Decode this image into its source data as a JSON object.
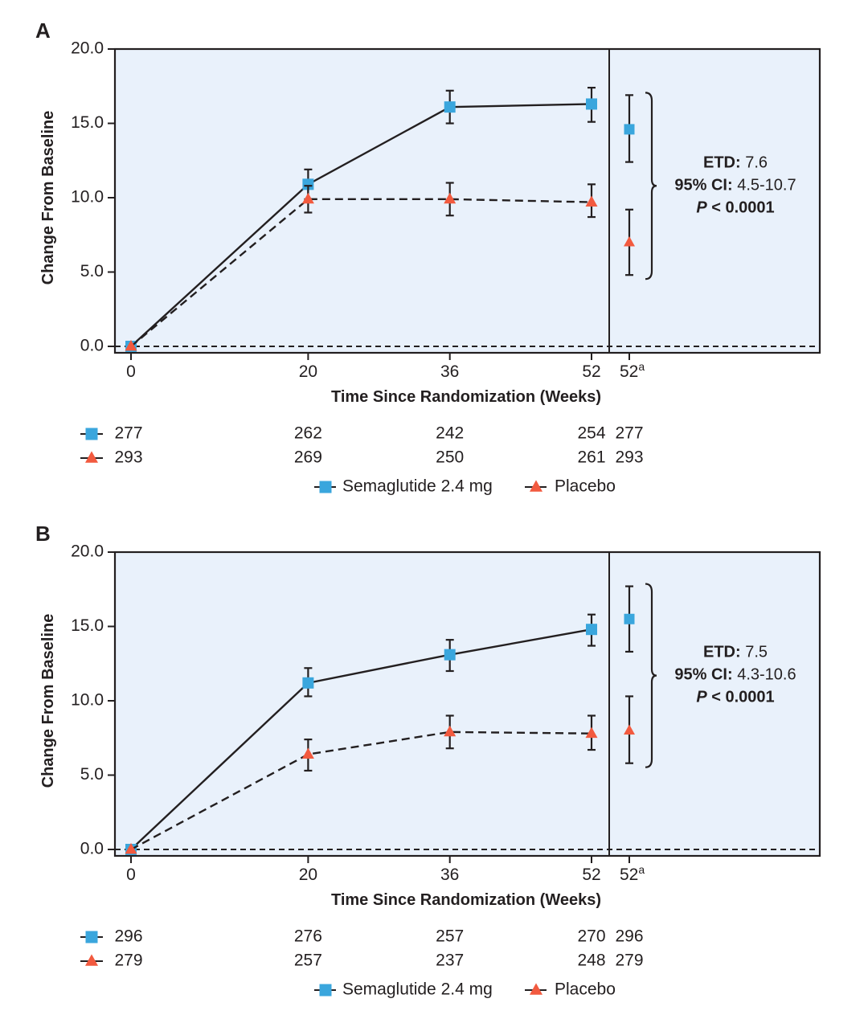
{
  "colors": {
    "semaglutide": "#3aa6dd",
    "placebo": "#f25a3f",
    "plot_bg": "#e9f1fb",
    "ink": "#231f20"
  },
  "legend": {
    "items": [
      {
        "name": "Semaglutide 2.4 mg",
        "marker": "square",
        "line": "solid"
      },
      {
        "name": "Placebo",
        "marker": "triangle",
        "line": "dashed"
      }
    ]
  },
  "chart_data": [
    {
      "panel": "A",
      "type": "line",
      "title": "",
      "xlabel": "Time Since Randomization (Weeks)",
      "ylabel": "Change From Baseline",
      "ylim": [
        0,
        20
      ],
      "yticks": [
        "0.0",
        "5.0",
        "10.0",
        "15.0",
        "20.0"
      ],
      "x": [
        0,
        20,
        36,
        52
      ],
      "xtick_labels": [
        "0",
        "20",
        "36",
        "52",
        "52"
      ],
      "extra_tick_superscript": "a",
      "reference_line": 0,
      "series": [
        {
          "name": "Semaglutide 2.4 mg",
          "values": [
            0,
            10.9,
            16.1,
            16.3
          ],
          "err_low": [
            0,
            9.9,
            15.0,
            15.1
          ],
          "err_high": [
            0,
            11.9,
            17.2,
            17.4
          ],
          "endpoint": {
            "value": 14.6,
            "ci": [
              12.4,
              16.9
            ]
          }
        },
        {
          "name": "Placebo",
          "values": [
            0,
            9.9,
            9.9,
            9.7
          ],
          "err_low": [
            0,
            9.0,
            8.8,
            8.7
          ],
          "err_high": [
            0,
            10.8,
            11.0,
            10.9
          ],
          "endpoint": {
            "value": 7.0,
            "ci": [
              4.8,
              9.2
            ]
          }
        }
      ],
      "annotation": {
        "etd_label": "ETD:",
        "etd_value": " 7.6",
        "ci_label": "95% CI:",
        "ci_value": " 4.5-10.7",
        "p_label": "P",
        "p_value": " < 0.0001"
      },
      "at_risk": {
        "semaglutide": [
          "277",
          "262",
          "242",
          "254",
          "277"
        ],
        "placebo": [
          "293",
          "269",
          "250",
          "261",
          "293"
        ]
      }
    },
    {
      "panel": "B",
      "type": "line",
      "title": "",
      "xlabel": "Time Since Randomization (Weeks)",
      "ylabel": "Change From Baseline",
      "ylim": [
        0,
        20
      ],
      "yticks": [
        "0.0",
        "5.0",
        "10.0",
        "15.0",
        "20.0"
      ],
      "x": [
        0,
        20,
        36,
        52
      ],
      "xtick_labels": [
        "0",
        "20",
        "36",
        "52",
        "52"
      ],
      "extra_tick_superscript": "a",
      "reference_line": 0,
      "series": [
        {
          "name": "Semaglutide 2.4 mg",
          "values": [
            0,
            11.2,
            13.1,
            14.8
          ],
          "err_low": [
            0,
            10.3,
            12.0,
            13.7
          ],
          "err_high": [
            0,
            12.2,
            14.1,
            15.8
          ],
          "endpoint": {
            "value": 15.5,
            "ci": [
              13.3,
              17.7
            ]
          }
        },
        {
          "name": "Placebo",
          "values": [
            0,
            6.4,
            7.9,
            7.8
          ],
          "err_low": [
            0,
            5.3,
            6.8,
            6.7
          ],
          "err_high": [
            0,
            7.4,
            9.0,
            9.0
          ],
          "endpoint": {
            "value": 8.0,
            "ci": [
              5.8,
              10.3
            ]
          }
        }
      ],
      "annotation": {
        "etd_label": "ETD:",
        "etd_value": " 7.5",
        "ci_label": "95% CI:",
        "ci_value": " 4.3-10.6",
        "p_label": "P",
        "p_value": " < 0.0001"
      },
      "at_risk": {
        "semaglutide": [
          "296",
          "276",
          "257",
          "270",
          "296"
        ],
        "placebo": [
          "279",
          "257",
          "237",
          "248",
          "279"
        ]
      }
    }
  ]
}
